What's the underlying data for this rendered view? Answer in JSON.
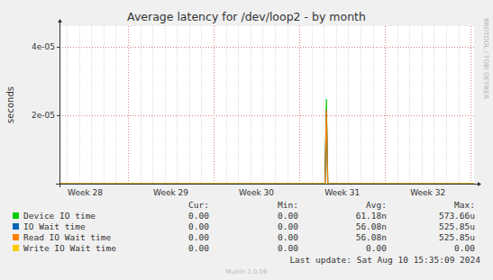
{
  "chart_data": {
    "type": "line",
    "title": "Average latency for /dev/loop2 - by month",
    "y_label": "seconds",
    "watermark": "RRDTOOL / TOBI OETIKER",
    "footer": "Last update: Sat Aug 10 15:35:09 2024",
    "credit": "Munin 2.0.56",
    "x": [
      28.2,
      31.3,
      31.316,
      31.332,
      33.04
    ],
    "xlim": [
      28.2,
      33.04
    ],
    "xticks": [
      {
        "value": 28.5,
        "label": "Week 28"
      },
      {
        "value": 29.5,
        "label": "Week 29"
      },
      {
        "value": 30.5,
        "label": "Week 30"
      },
      {
        "value": 31.5,
        "label": "Week 31"
      },
      {
        "value": 32.5,
        "label": "Week 32"
      }
    ],
    "ylim": [
      0,
      4.6e-05
    ],
    "yticks": [
      {
        "value": 2e-05,
        "label": "2e-05"
      },
      {
        "value": 4e-05,
        "label": "4e-05"
      }
    ],
    "grid": true,
    "stats_headers": [
      "Cur:",
      "Min:",
      "Avg:",
      "Max:"
    ],
    "series": [
      {
        "name": "Device IO time",
        "color": "#00cc00",
        "values": [
          0,
          0,
          2.47e-05,
          0,
          0
        ],
        "stats": [
          "0.00",
          "0.00",
          "61.18n",
          "573.66u"
        ]
      },
      {
        "name": "IO Wait time",
        "color": "#0066b3",
        "values": [
          0,
          0,
          2.16e-05,
          0,
          0
        ],
        "stats": [
          "0.00",
          "0.00",
          "56.08n",
          "525.85u"
        ]
      },
      {
        "name": "Read IO Wait time",
        "color": "#ff8000",
        "values": [
          0,
          0,
          2.16e-05,
          0,
          0
        ],
        "stats": [
          "0.00",
          "0.00",
          "56.08n",
          "525.85u"
        ]
      },
      {
        "name": "Write IO Wait time",
        "color": "#ffcc00",
        "values": [
          0,
          0,
          0,
          0,
          0
        ],
        "stats": [
          "0.00",
          "0.00",
          "0.00",
          "0.00"
        ]
      }
    ]
  }
}
